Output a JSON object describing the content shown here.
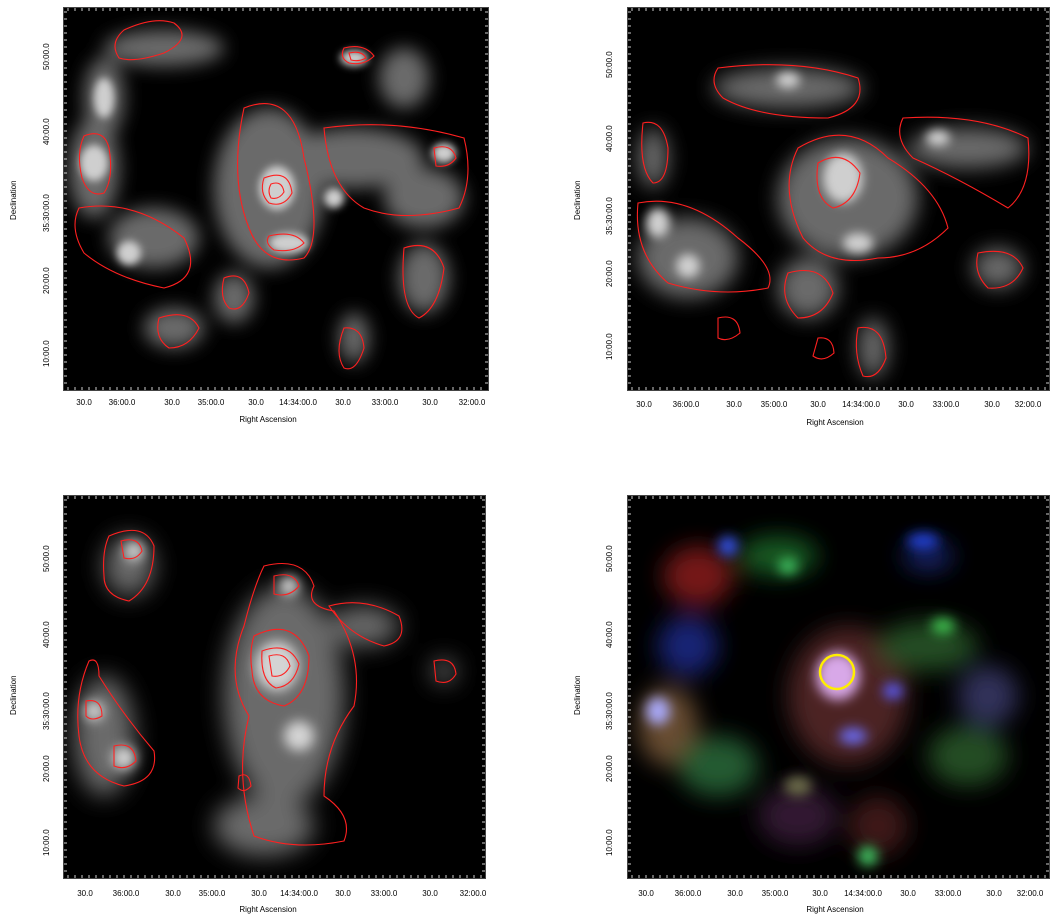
{
  "panels": [
    {
      "id": "p1",
      "xlabel": "Right Ascension",
      "ylabel": "Declination",
      "xticks": [
        "30.0",
        "36:00.0",
        "30.0",
        "35:00.0",
        "30.0",
        "14:34:00.0",
        "30.0",
        "33:00.0",
        "30.0",
        "32:00.0"
      ],
      "yticks": [
        "50:00.0",
        "40:00.0",
        "35:30:00.0",
        "20:00.0",
        "10:00.0"
      ],
      "style": "grayscale-contours"
    },
    {
      "id": "p2",
      "xlabel": "Right Ascension",
      "ylabel": "Declination",
      "xticks": [
        "30.0",
        "36:00.0",
        "30.0",
        "35:00.0",
        "30.0",
        "14:34:00.0",
        "30.0",
        "33:00.0",
        "30.0",
        "32:00.0"
      ],
      "yticks": [
        "50:00.0",
        "40:00.0",
        "35:30:00.0",
        "20:00.0",
        "10:00.0"
      ],
      "style": "grayscale-contours"
    },
    {
      "id": "p3",
      "xlabel": "Right Ascension",
      "ylabel": "Declination",
      "xticks": [
        "30.0",
        "36:00.0",
        "30.0",
        "35:00.0",
        "30.0",
        "14:34:00.0",
        "30.0",
        "33:00.0",
        "30.0",
        "32:00.0"
      ],
      "yticks": [
        "50:00.0",
        "40:00.0",
        "35:30:00.0",
        "20:00.0",
        "10:00.0"
      ],
      "style": "grayscale-contours"
    },
    {
      "id": "p4",
      "xlabel": "Right Ascension",
      "ylabel": "Declination",
      "xticks": [
        "30.0",
        "36:00.0",
        "30.0",
        "35:00.0",
        "30.0",
        "14:34:00.0",
        "30.0",
        "33:00.0",
        "30.0",
        "32:00.0"
      ],
      "yticks": [
        "50:00.0",
        "40:00.0",
        "35:30:00.0",
        "20:00.0",
        "10:00.0"
      ],
      "style": "rgb-composite"
    }
  ],
  "colors": {
    "contour": "#ff2020",
    "marker": "#ffee00",
    "background": "#000000"
  }
}
